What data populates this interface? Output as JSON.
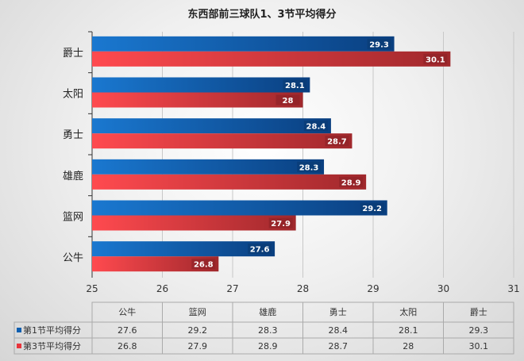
{
  "chart_data": {
    "type": "bar",
    "orientation": "horizontal",
    "title": "东西部前三球队1、3节平均得分",
    "categories": [
      "公牛",
      "篮网",
      "雄鹿",
      "勇士",
      "太阳",
      "爵士"
    ],
    "series": [
      {
        "name": "第1节平均得分",
        "values": [
          27.6,
          29.2,
          28.3,
          28.4,
          28.1,
          29.3
        ],
        "color": "#0f5fb0"
      },
      {
        "name": "第3节平均得分",
        "values": [
          26.8,
          27.9,
          28.9,
          28.7,
          28,
          30.1
        ],
        "color": "#e8343c"
      }
    ],
    "xlim": [
      25,
      31
    ],
    "xticks": [
      "25",
      "26",
      "27",
      "28",
      "29",
      "30",
      "31"
    ],
    "grid": true,
    "data_labels": true,
    "data_table": true
  }
}
